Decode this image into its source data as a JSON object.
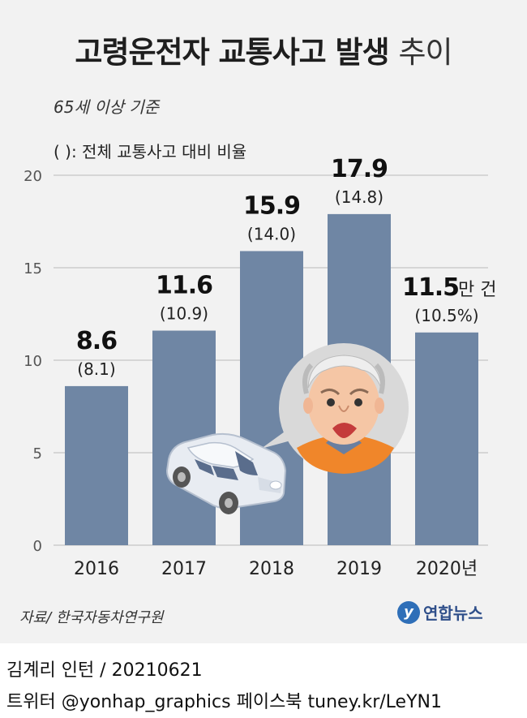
{
  "title": {
    "bold": "고령운전자 교통사고 발생",
    "light": "추이"
  },
  "subtitle": "65세 이상 기준",
  "note": "( ): 전체 교통사고 대비 비율",
  "chart_data": {
    "type": "bar",
    "categories": [
      "2016",
      "2017",
      "2018",
      "2019",
      "2020년"
    ],
    "values": [
      8.6,
      11.6,
      15.9,
      17.9,
      11.5
    ],
    "value_labels": [
      "8.6",
      "11.6",
      "15.9",
      "17.9",
      "11.5"
    ],
    "value_suffix_last": "만 건",
    "ratio_labels": [
      "(8.1)",
      "(10.9)",
      "(14.0)",
      "(14.8)",
      "(10.5%)"
    ],
    "yticks": [
      "0",
      "5",
      "10",
      "15",
      "20"
    ],
    "ylim": [
      0,
      20
    ],
    "grid": true,
    "bar_color": "#6f86a4"
  },
  "source": "자료/ 한국자동차연구원",
  "logo": {
    "mark": "y",
    "text": "연합뉴스"
  },
  "credit": "김계리 인턴 / 20210621",
  "social": "트위터 @yonhap_graphics  페이스북 tuney.kr/LeYN1",
  "icons": [
    "car-icon",
    "elderly-driver-icon"
  ]
}
